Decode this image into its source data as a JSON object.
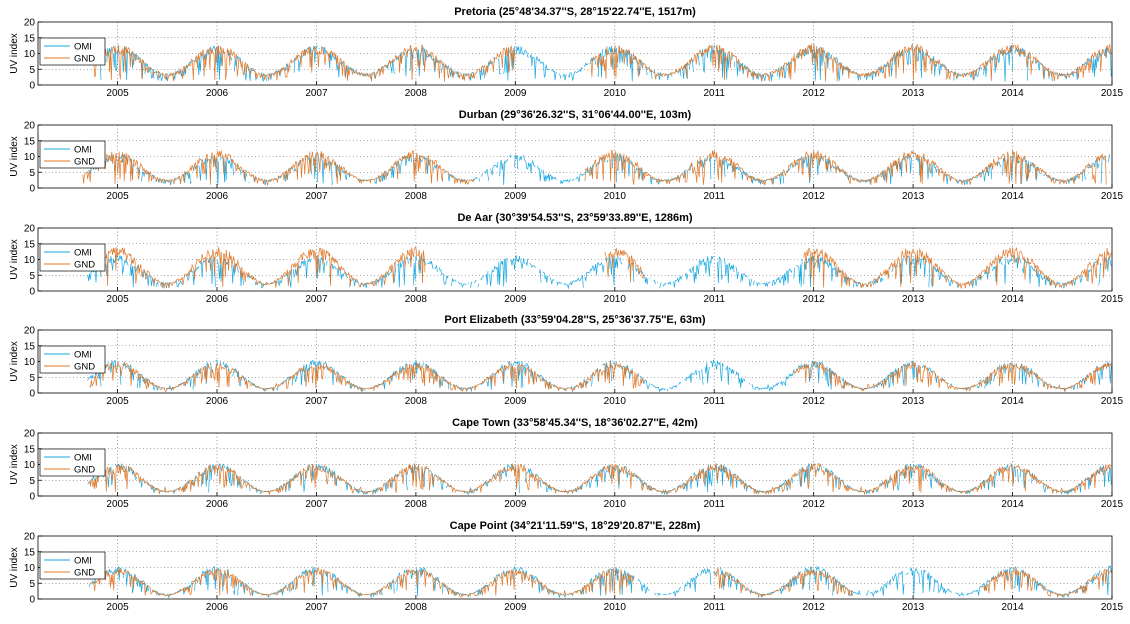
{
  "chart_data": [
    {
      "type": "line",
      "title": "Pretoria (25°48'34.37''S, 28°15'22.74''E, 1517m)",
      "ylabel": "UV index",
      "xlim": [
        2004.2,
        2015.0
      ],
      "ylim": [
        0,
        20
      ],
      "yticks": [
        0,
        5,
        10,
        15,
        20
      ],
      "xticks": [
        2005,
        2006,
        2007,
        2008,
        2009,
        2010,
        2011,
        2012,
        2013,
        2014,
        2015
      ],
      "grid": "dotted",
      "legend": "top-left",
      "series": [
        {
          "name": "OMI",
          "color": "#1aa7e0",
          "start": 2004.75,
          "end": 2015.0,
          "summer_peak": 12,
          "winter_min": 3.5
        },
        {
          "name": "GND",
          "color": "#e0782a",
          "start": 2004.72,
          "end": 2015.0,
          "summer_peak": 12.5,
          "winter_min": 3.5,
          "gaps": [
            [
              2009.0,
              2009.75
            ]
          ]
        }
      ]
    },
    {
      "type": "line",
      "title": "Durban (29°36'26.32''S, 31°06'44.00''E, 103m)",
      "ylabel": "UV index",
      "xlim": [
        2004.2,
        2015.0
      ],
      "ylim": [
        0,
        20
      ],
      "yticks": [
        0,
        5,
        10,
        15,
        20
      ],
      "xticks": [
        2005,
        2006,
        2007,
        2008,
        2009,
        2010,
        2011,
        2012,
        2013,
        2014,
        2015
      ],
      "grid": "dotted",
      "legend": "top-left",
      "series": [
        {
          "name": "OMI",
          "color": "#1aa7e0",
          "start": 2004.7,
          "end": 2015.0,
          "summer_peak": 10.5,
          "winter_min": 2.5
        },
        {
          "name": "GND",
          "color": "#e0782a",
          "start": 2004.65,
          "end": 2014.95,
          "summer_peak": 11.5,
          "winter_min": 2.5,
          "gaps": [
            [
              2008.6,
              2009.7
            ]
          ]
        }
      ]
    },
    {
      "type": "line",
      "title": "De Aar (30°39'54.53''S, 23°59'33.89''E, 1286m)",
      "ylabel": "UV index",
      "xlim": [
        2004.2,
        2015.0
      ],
      "ylim": [
        0,
        20
      ],
      "yticks": [
        0,
        5,
        10,
        15,
        20
      ],
      "xticks": [
        2005,
        2006,
        2007,
        2008,
        2009,
        2010,
        2011,
        2012,
        2013,
        2014,
        2015
      ],
      "grid": "dotted",
      "legend": "top-left",
      "series": [
        {
          "name": "OMI",
          "color": "#1aa7e0",
          "start": 2004.7,
          "end": 2015.0,
          "summer_peak": 11,
          "winter_min": 2.5
        },
        {
          "name": "GND",
          "color": "#e0782a",
          "start": 2004.75,
          "end": 2015.0,
          "summer_peak": 13.5,
          "winter_min": 2.5,
          "gaps": [
            [
              2008.1,
              2009.9
            ],
            [
              2010.3,
              2011.9
            ]
          ]
        }
      ]
    },
    {
      "type": "line",
      "title": "Port Elizabeth (33°59'04.28''S, 25°36'37.75''E, 63m)",
      "ylabel": "UV index",
      "xlim": [
        2004.2,
        2015.0
      ],
      "ylim": [
        0,
        20
      ],
      "yticks": [
        0,
        5,
        10,
        15,
        20
      ],
      "xticks": [
        2005,
        2006,
        2007,
        2008,
        2009,
        2010,
        2011,
        2012,
        2013,
        2014,
        2015
      ],
      "grid": "dotted",
      "legend": "top-left",
      "series": [
        {
          "name": "OMI",
          "color": "#1aa7e0",
          "start": 2004.7,
          "end": 2015.0,
          "summer_peak": 10,
          "winter_min": 1.5
        },
        {
          "name": "GND",
          "color": "#e0782a",
          "start": 2004.72,
          "end": 2015.0,
          "summer_peak": 9.5,
          "winter_min": 1.5,
          "gaps": [
            [
              2010.3,
              2011.8
            ]
          ]
        }
      ]
    },
    {
      "type": "line",
      "title": "Cape Town (33°58'45.34''S, 18°36'02.27''E, 42m)",
      "ylabel": "UV index",
      "xlim": [
        2004.2,
        2015.0
      ],
      "ylim": [
        0,
        20
      ],
      "yticks": [
        0,
        5,
        10,
        15,
        20
      ],
      "xticks": [
        2005,
        2006,
        2007,
        2008,
        2009,
        2010,
        2011,
        2012,
        2013,
        2014,
        2015
      ],
      "grid": "dotted",
      "legend": "top-left",
      "series": [
        {
          "name": "OMI",
          "color": "#1aa7e0",
          "start": 2004.7,
          "end": 2015.0,
          "summer_peak": 10,
          "winter_min": 1.5
        },
        {
          "name": "GND",
          "color": "#e0782a",
          "start": 2004.72,
          "end": 2015.0,
          "summer_peak": 10,
          "winter_min": 1.5,
          "gaps": []
        }
      ]
    },
    {
      "type": "line",
      "title": "Cape Point (34°21'11.59''S, 18°29'20.87''E, 228m)",
      "ylabel": "UV index",
      "xlim": [
        2004.2,
        2015.0
      ],
      "ylim": [
        0,
        20
      ],
      "yticks": [
        0,
        5,
        10,
        15,
        20
      ],
      "xticks": [
        2005,
        2006,
        2007,
        2008,
        2009,
        2010,
        2011,
        2012,
        2013,
        2014,
        2015
      ],
      "grid": "dotted",
      "legend": "top-left",
      "series": [
        {
          "name": "OMI",
          "color": "#1aa7e0",
          "start": 2004.7,
          "end": 2015.0,
          "summer_peak": 10,
          "winter_min": 1.5
        },
        {
          "name": "GND",
          "color": "#e0782a",
          "start": 2004.72,
          "end": 2015.0,
          "summer_peak": 9.5,
          "winter_min": 1.5,
          "gaps": [
            [
              2010.2,
              2011.0
            ],
            [
              2012.4,
              2013.7
            ]
          ]
        }
      ]
    }
  ]
}
